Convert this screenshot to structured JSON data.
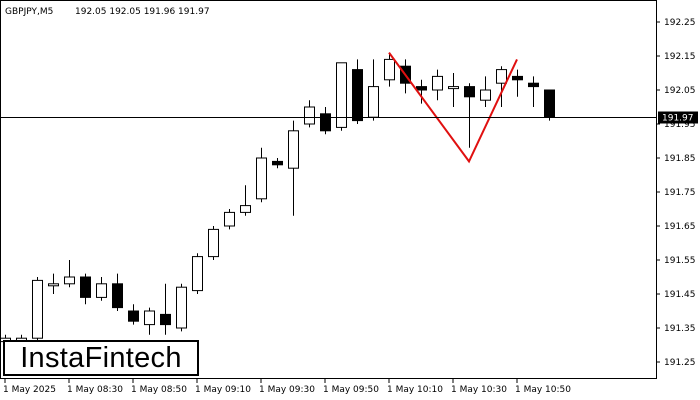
{
  "header": {
    "symbol": "GBPJPY,M5",
    "ohlc": "192.05 192.05 191.96 191.97"
  },
  "logo": "InstaFintech",
  "chart_data": {
    "type": "candlestick",
    "symbol": "GBPJPY",
    "timeframe": "M5",
    "ylim": [
      191.19,
      192.26
    ],
    "y_ticks": [
      "192.25",
      "192.15",
      "192.05",
      "191.95",
      "191.85",
      "191.75",
      "191.65",
      "191.55",
      "191.45",
      "191.35",
      "191.25"
    ],
    "x_ticks": [
      "1 May 2025",
      "1 May 08:30",
      "1 May 08:50",
      "1 May 09:10",
      "1 May 09:30",
      "1 May 09:50",
      "1 May 10:10",
      "1 May 10:30",
      "1 May 10:50"
    ],
    "current_price": "191.97",
    "candles": [
      {
        "o": 191.31,
        "h": 191.33,
        "l": 191.29,
        "c": 191.32
      },
      {
        "o": 191.31,
        "h": 191.33,
        "l": 191.29,
        "c": 191.32
      },
      {
        "o": 191.32,
        "h": 191.5,
        "l": 191.3,
        "c": 191.49
      },
      {
        "o": 191.48,
        "h": 191.51,
        "l": 191.45,
        "c": 191.48
      },
      {
        "o": 191.48,
        "h": 191.55,
        "l": 191.47,
        "c": 191.5
      },
      {
        "o": 191.5,
        "h": 191.51,
        "l": 191.42,
        "c": 191.44
      },
      {
        "o": 191.44,
        "h": 191.5,
        "l": 191.43,
        "c": 191.48
      },
      {
        "o": 191.48,
        "h": 191.51,
        "l": 191.4,
        "c": 191.41
      },
      {
        "o": 191.4,
        "h": 191.42,
        "l": 191.36,
        "c": 191.37
      },
      {
        "o": 191.36,
        "h": 191.41,
        "l": 191.33,
        "c": 191.4
      },
      {
        "o": 191.39,
        "h": 191.48,
        "l": 191.33,
        "c": 191.36
      },
      {
        "o": 191.35,
        "h": 191.48,
        "l": 191.34,
        "c": 191.47
      },
      {
        "o": 191.46,
        "h": 191.57,
        "l": 191.45,
        "c": 191.56
      },
      {
        "o": 191.56,
        "h": 191.65,
        "l": 191.55,
        "c": 191.64
      },
      {
        "o": 191.65,
        "h": 191.7,
        "l": 191.64,
        "c": 191.69
      },
      {
        "o": 191.69,
        "h": 191.77,
        "l": 191.68,
        "c": 191.71
      },
      {
        "o": 191.73,
        "h": 191.88,
        "l": 191.72,
        "c": 191.85
      },
      {
        "o": 191.84,
        "h": 191.85,
        "l": 191.82,
        "c": 191.83
      },
      {
        "o": 191.82,
        "h": 191.96,
        "l": 191.68,
        "c": 191.93
      },
      {
        "o": 191.95,
        "h": 192.02,
        "l": 191.94,
        "c": 192.0
      },
      {
        "o": 191.98,
        "h": 192.0,
        "l": 191.92,
        "c": 191.93
      },
      {
        "o": 191.94,
        "h": 192.13,
        "l": 191.93,
        "c": 192.13
      },
      {
        "o": 192.11,
        "h": 192.14,
        "l": 191.95,
        "c": 191.96
      },
      {
        "o": 191.97,
        "h": 192.14,
        "l": 191.96,
        "c": 192.06
      },
      {
        "o": 192.08,
        "h": 192.16,
        "l": 192.06,
        "c": 192.14
      },
      {
        "o": 192.12,
        "h": 192.14,
        "l": 192.04,
        "c": 192.07
      },
      {
        "o": 192.06,
        "h": 192.08,
        "l": 192.01,
        "c": 192.05
      },
      {
        "o": 192.05,
        "h": 192.11,
        "l": 192.02,
        "c": 192.09
      },
      {
        "o": 192.06,
        "h": 192.1,
        "l": 192.0,
        "c": 192.06
      },
      {
        "o": 192.06,
        "h": 192.07,
        "l": 191.88,
        "c": 192.03
      },
      {
        "o": 192.02,
        "h": 192.09,
        "l": 192.0,
        "c": 192.05
      },
      {
        "o": 192.07,
        "h": 192.12,
        "l": 192.0,
        "c": 192.11
      },
      {
        "o": 192.09,
        "h": 192.11,
        "l": 192.03,
        "c": 192.08
      },
      {
        "o": 192.07,
        "h": 192.09,
        "l": 192.0,
        "c": 192.06
      },
      {
        "o": 192.05,
        "h": 192.05,
        "l": 191.96,
        "c": 191.97
      }
    ],
    "pattern": {
      "name": "Double Top",
      "color": "#e01010",
      "points": [
        {
          "bar": 24,
          "price": 192.16
        },
        {
          "bar": 29,
          "price": 191.84
        },
        {
          "bar": 32,
          "price": 192.14
        }
      ]
    },
    "colors": {
      "bull": "#ffffff",
      "bear": "#000000",
      "wick": "#000000",
      "price_line": "#000000",
      "pattern": "#e01010"
    }
  }
}
